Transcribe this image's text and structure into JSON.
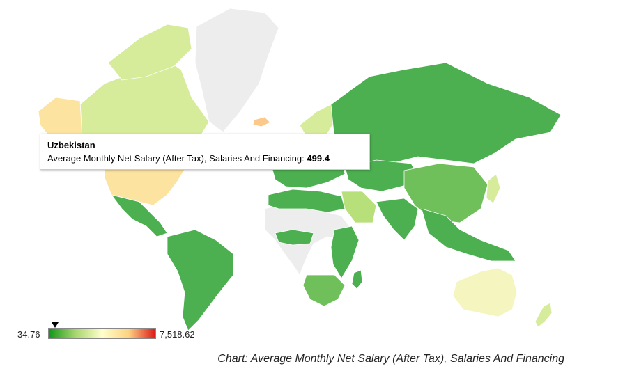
{
  "tooltip": {
    "country": "Uzbekistan",
    "metric_label": "Average Monthly Net Salary (After Tax), Salaries And Financing:",
    "value": "499.4"
  },
  "legend": {
    "min": "34.76",
    "max": "7,518.62",
    "colors": [
      "#109618",
      "#a8d66e",
      "#ffffcc",
      "#fdd280",
      "#dc1a1a"
    ],
    "marker_value": 499.4
  },
  "caption": "Chart: Average Monthly Net Salary (After Tax), Salaries And Financing",
  "colors": {
    "low": "#4caf50",
    "mid_low": "#b7df7a",
    "mid": "#f5f5bf",
    "high": "#fde3a0",
    "top": "#e53935",
    "no_data": "#ededed"
  }
}
